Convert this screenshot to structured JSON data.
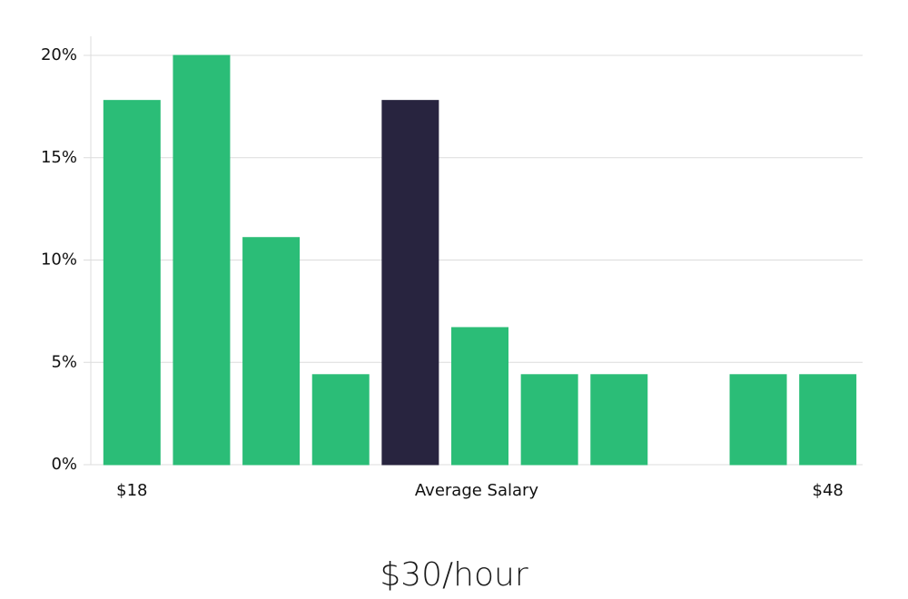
{
  "chart_data": {
    "type": "bar",
    "categories": [
      "$18",
      null,
      null,
      null,
      null,
      null,
      null,
      null,
      null,
      null,
      "$48"
    ],
    "values": [
      17.8,
      20,
      11.1,
      4.4,
      17.8,
      6.7,
      4.4,
      4.4,
      0,
      4.4,
      4.4
    ],
    "colors": [
      "#2bbd77",
      "#2bbd77",
      "#2bbd77",
      "#2bbd77",
      "#28243f",
      "#2bbd77",
      "#2bbd77",
      "#2bbd77",
      "#2bbd77",
      "#2bbd77",
      "#2bbd77"
    ],
    "xlabel": "Average Salary",
    "title": "$30/hour",
    "ylim": [
      0,
      21
    ],
    "yticks": [
      {
        "value": 0,
        "label": "0%"
      },
      {
        "value": 5,
        "label": "5%"
      },
      {
        "value": 10,
        "label": "10%"
      },
      {
        "value": 15,
        "label": "15%"
      },
      {
        "value": 20,
        "label": "20%"
      }
    ],
    "grid": true
  }
}
